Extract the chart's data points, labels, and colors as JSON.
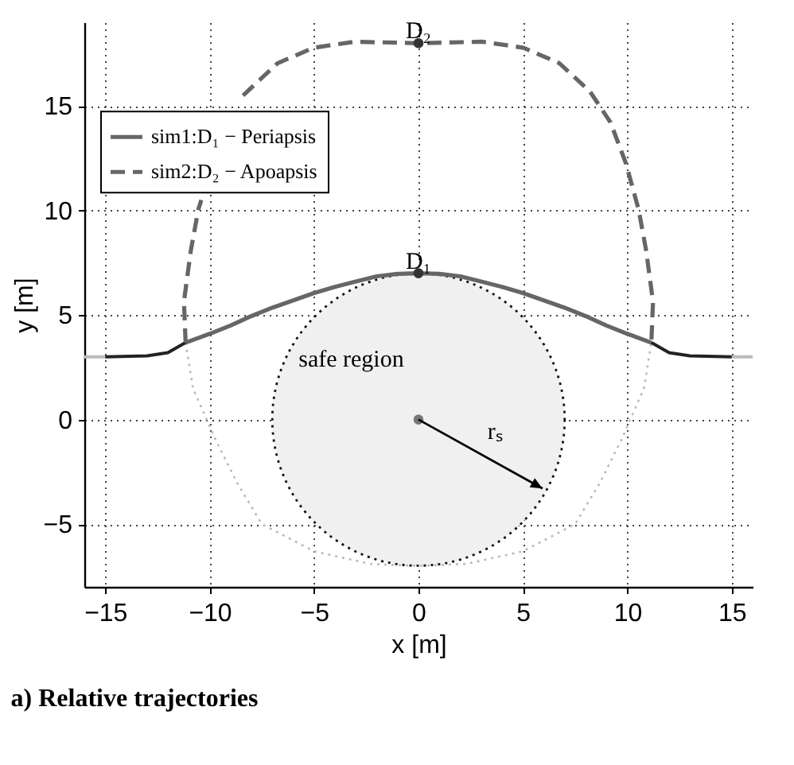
{
  "chart_data": {
    "type": "line",
    "title": "a) Relative trajectories",
    "xlabel": "x [m]",
    "ylabel": "y [m]",
    "xlim": [
      -16,
      16
    ],
    "ylim": [
      -8,
      19
    ],
    "xticks": [
      -15,
      -10,
      -5,
      0,
      5,
      10,
      15
    ],
    "yticks": [
      -5,
      0,
      5,
      10,
      15
    ],
    "grid": true,
    "legend": "top left",
    "series": [
      {
        "line_style": "dotted",
        "color": "#bbbbbb",
        "x": [
          -11.15,
          -10.8,
          -9.7,
          -8.7,
          -7.5,
          -5,
          -2.3,
          0,
          2.3,
          5,
          7.5,
          8.7,
          9.7,
          10.8,
          11.15
        ],
        "values": [
          3.68,
          1.5,
          -1,
          -3,
          -5,
          -6.3,
          -6.9,
          -7,
          -6.9,
          -6.3,
          -5,
          -3,
          -1,
          1.5,
          3.68
        ]
      },
      {
        "color": "#bbbbbb",
        "x": [
          -16,
          -15
        ],
        "values": [
          3,
          3
        ]
      },
      {
        "color": "#bbbbbb",
        "x": [
          15,
          16
        ],
        "values": [
          3,
          3
        ]
      },
      {
        "color": "#222222",
        "x": [
          -15,
          -13,
          -12,
          -11.15
        ],
        "values": [
          3,
          3.05,
          3.2,
          3.68
        ]
      },
      {
        "color": "#222222",
        "x": [
          11.15,
          12,
          13,
          15
        ],
        "values": [
          3.68,
          3.2,
          3.05,
          3
        ]
      },
      {
        "name": "sim1:D₁ − Periapsis",
        "color": "#666666",
        "x": [
          -11.15,
          -10,
          -9,
          -8,
          -7,
          -6,
          -5,
          -4,
          -3,
          -2,
          -1,
          0,
          1,
          2,
          3,
          4,
          5,
          6,
          7,
          8,
          9,
          10,
          11.15
        ],
        "values": [
          3.68,
          4.1,
          4.5,
          4.95,
          5.35,
          5.7,
          6.05,
          6.35,
          6.6,
          6.85,
          6.97,
          7,
          6.97,
          6.85,
          6.6,
          6.35,
          6.05,
          5.7,
          5.35,
          4.95,
          4.5,
          4.1,
          3.68
        ]
      },
      {
        "name": "sim2:D₂ − Apoapsis",
        "color": "#666666",
        "line_style": "dashed",
        "x": [
          -11.15,
          -11.23,
          -10.9,
          -10.54,
          -10.4,
          -9.6,
          -8.4,
          -6.75,
          -5.03,
          -3.07,
          0,
          3.07,
          5.03,
          6.75,
          8.21,
          9.19,
          9.93,
          10.54,
          10.9,
          11.23,
          11.15
        ],
        "values": [
          3.68,
          5.64,
          8.09,
          10.05,
          10.5,
          null,
          15.5,
          17.04,
          17.78,
          18.07,
          18,
          18.07,
          17.78,
          17.04,
          15.69,
          14.22,
          12.26,
          10.05,
          8.09,
          5.64,
          3.68
        ]
      },
      {
        "type": "scatter",
        "color": "#777777",
        "x": [
          0
        ],
        "values": [
          0
        ]
      },
      {
        "type": "scatter",
        "color": "#333333",
        "x": [
          0,
          0
        ],
        "values": [
          7,
          18
        ]
      }
    ],
    "annotations": [
      {
        "text": "D₁",
        "x": 0,
        "y": 7
      },
      {
        "text": "D₂",
        "x": 0,
        "y": 18
      },
      "safe region",
      "rₛ"
    ]
  }
}
